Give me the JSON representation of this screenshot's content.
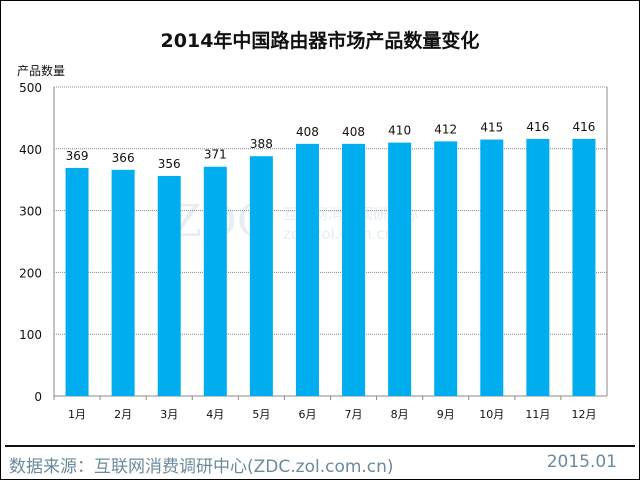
{
  "chart_data": {
    "type": "bar",
    "title": "2014年中国路由器市场产品数量变化",
    "ylabel": "产品数量",
    "xlabel": "",
    "categories": [
      "1月",
      "2月",
      "3月",
      "4月",
      "5月",
      "6月",
      "7月",
      "8月",
      "9月",
      "10月",
      "11月",
      "12月"
    ],
    "values": [
      369,
      366,
      356,
      371,
      388,
      408,
      408,
      410,
      412,
      415,
      416,
      416
    ],
    "ylim": [
      0,
      500
    ],
    "yticks": [
      0,
      100,
      200,
      300,
      400,
      500
    ],
    "grid": true,
    "bar_color": "#00AEEF"
  },
  "watermark": {
    "logo": "ZDC",
    "name": "互联网消费调研中心",
    "url": "zdc.zol.com.cn"
  },
  "footer": {
    "source": "数据来源：互联网消费调研中心(ZDC.zol.com.cn)",
    "date": "2015.01"
  }
}
